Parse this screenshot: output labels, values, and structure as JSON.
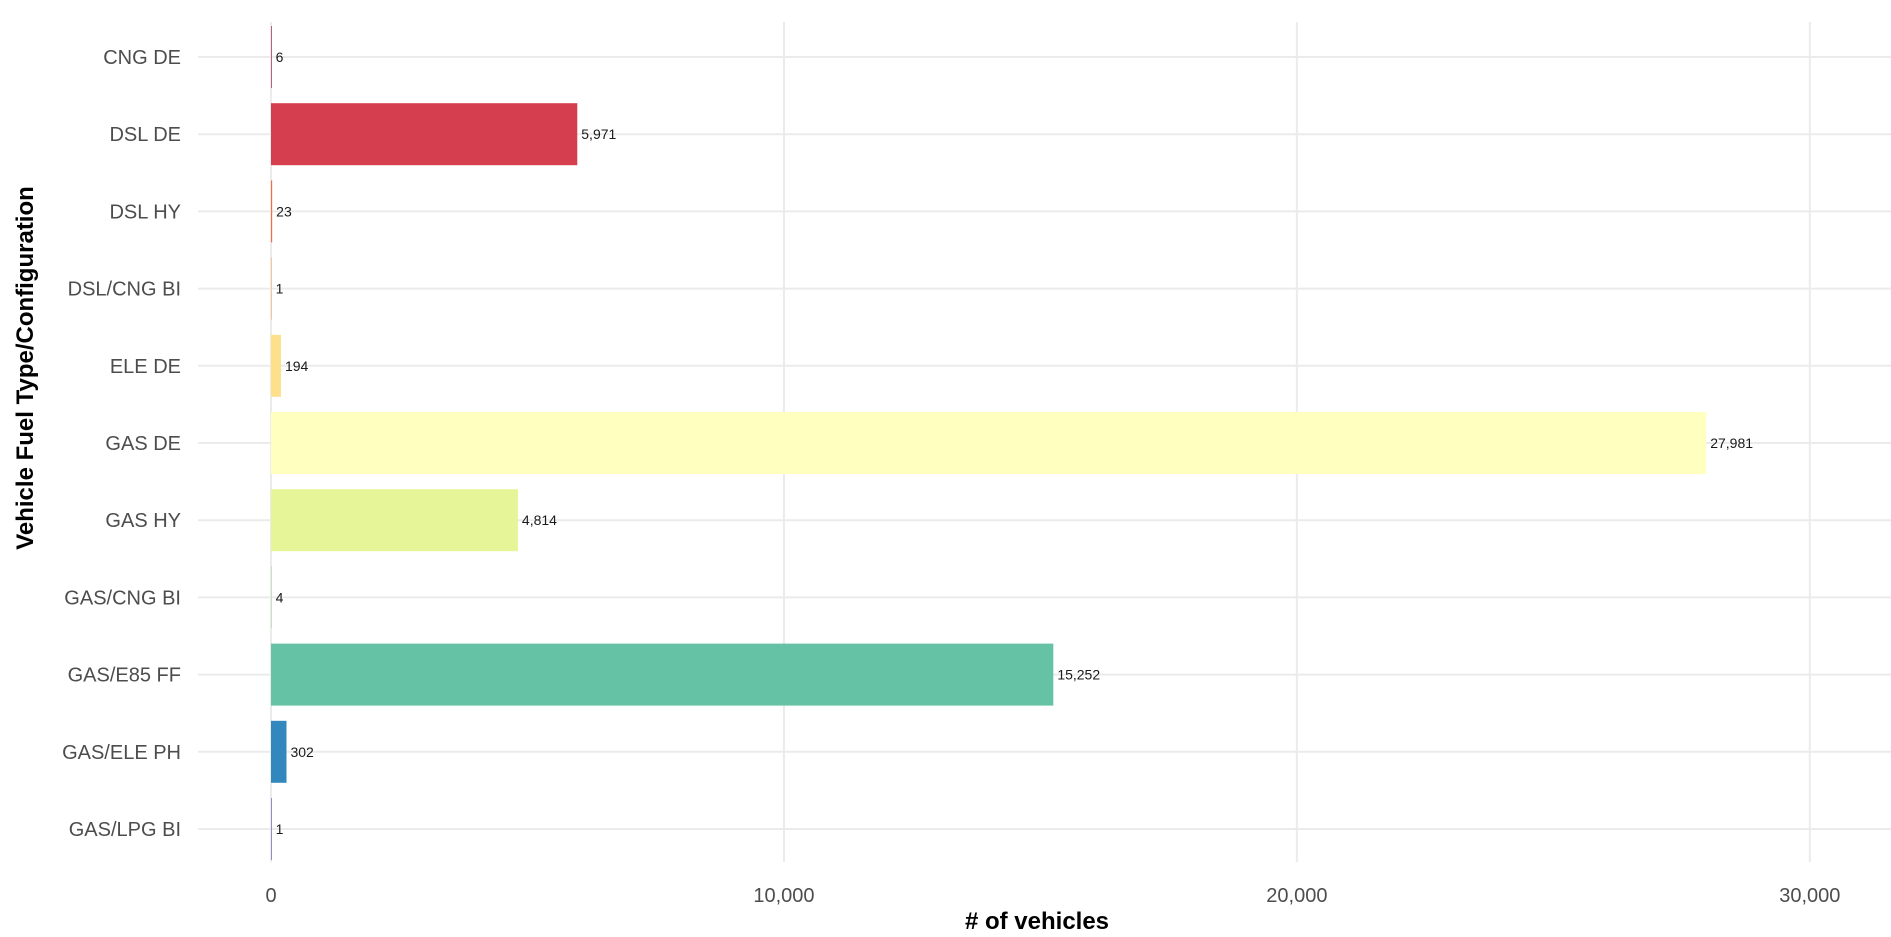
{
  "chart_data": {
    "type": "bar",
    "orientation": "horizontal",
    "categories": [
      "CNG DE",
      "DSL DE",
      "DSL HY",
      "DSL/CNG BI",
      "ELE DE",
      "GAS DE",
      "GAS HY",
      "GAS/CNG BI",
      "GAS/E85 FF",
      "GAS/ELE PH",
      "GAS/LPG BI"
    ],
    "values": [
      6,
      5971,
      23,
      1,
      194,
      27981,
      4814,
      4,
      15252,
      302,
      1
    ],
    "value_labels": [
      "6",
      "5,971",
      "23",
      "1",
      "194",
      "27,981",
      "4,814",
      "4",
      "15,252",
      "302",
      "1"
    ],
    "colors": [
      "#9E0142",
      "#D53E4F",
      "#F46D43",
      "#FDAE61",
      "#FEE08B",
      "#FFFFBF",
      "#E6F598",
      "#ABDDA4",
      "#66C2A5",
      "#3288BD",
      "#5E4FA2"
    ],
    "xlabel": "# of vehicles",
    "ylabel": "Vehicle Fuel Type/Configuration",
    "xlim": [
      -1500,
      31800
    ],
    "xticks": [
      0,
      10000,
      20000,
      30000
    ],
    "xtick_labels": [
      "0",
      "10,000",
      "20,000",
      "30,000"
    ],
    "grid": true,
    "legend": "none"
  }
}
